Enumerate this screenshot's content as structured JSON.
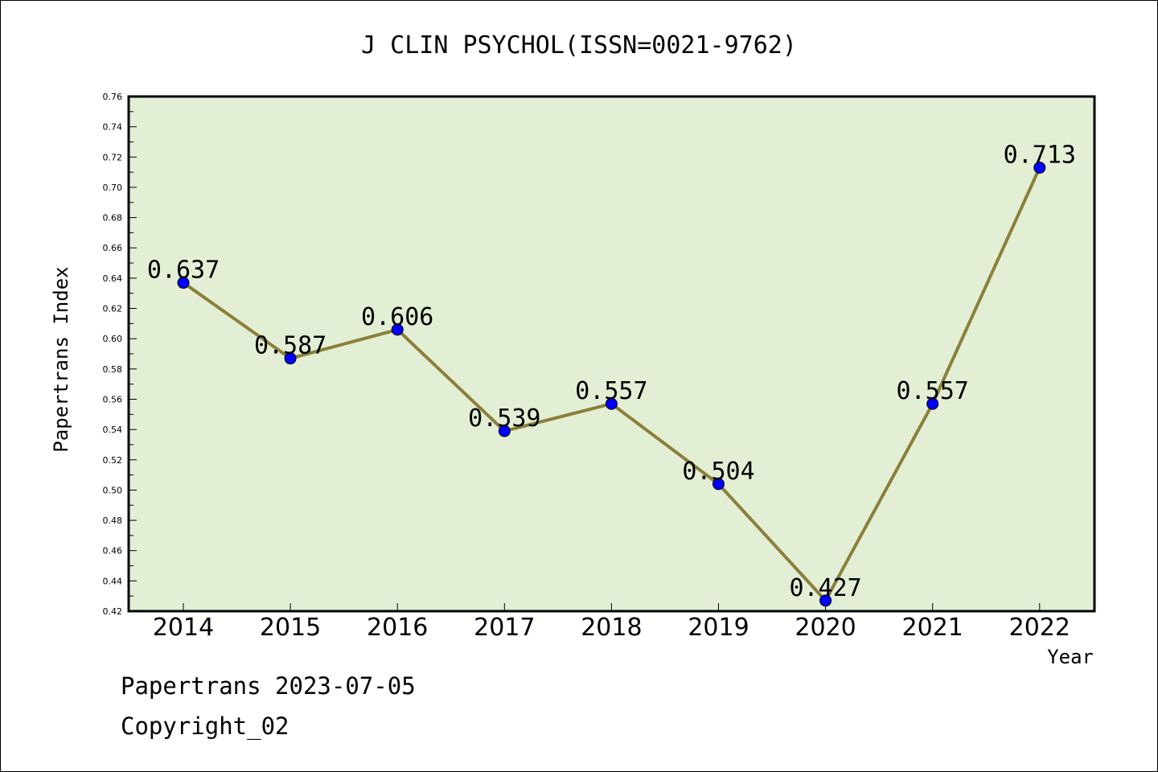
{
  "chart_data": {
    "type": "line",
    "title": "J CLIN PSYCHOL(ISSN=0021-9762)",
    "xlabel": "Year",
    "ylabel": "Papertrans Index",
    "categories": [
      "2014",
      "2015",
      "2016",
      "2017",
      "2018",
      "2019",
      "2020",
      "2021",
      "2022"
    ],
    "series": [
      {
        "values": [
          0.637,
          0.587,
          0.606,
          0.539,
          0.557,
          0.504,
          0.427,
          0.557,
          0.713
        ],
        "data_labels": [
          "0.637",
          "0.587",
          "0.606",
          "0.539",
          "0.557",
          "0.504",
          "0.427",
          "0.557",
          "0.713"
        ]
      }
    ],
    "ylim": [
      0.42,
      0.76
    ],
    "yticks": [
      "0.42",
      "0.44",
      "0.46",
      "0.48",
      "0.50",
      "0.52",
      "0.54",
      "0.56",
      "0.58",
      "0.60",
      "0.62",
      "0.64",
      "0.66",
      "0.68",
      "0.70",
      "0.72",
      "0.74",
      "0.76"
    ],
    "grid": false,
    "colors": {
      "plot_background": "#e2efd5",
      "line": "#8b7f3a",
      "marker": "#0000ff"
    }
  },
  "footer": {
    "date_line": "Papertrans 2023-07-05",
    "copyright_line": "Copyright_02"
  }
}
